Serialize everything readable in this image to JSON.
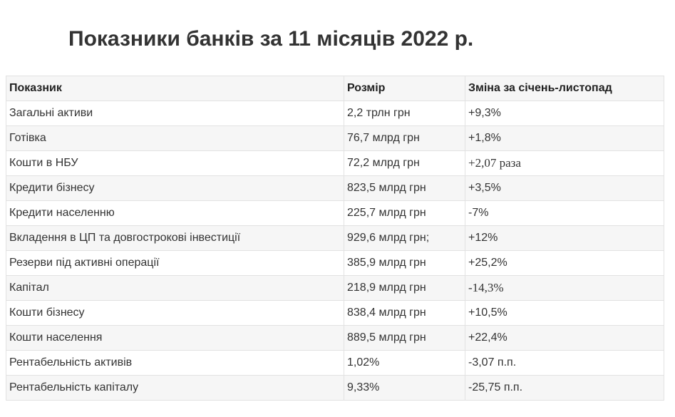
{
  "title": "Показники банків за 11 місяців 2022 р.",
  "table": {
    "headers": [
      "Показник",
      "Розмір",
      "Зміна за січень-листопад"
    ],
    "rows": [
      {
        "indicator": "Загальні активи",
        "size": "2,2 трлн грн",
        "change": "+9,3%"
      },
      {
        "indicator": "Готівка",
        "size": "76,7 млрд грн",
        "change": "+1,8%"
      },
      {
        "indicator": "Кошти в НБУ",
        "size": "72,2 млрд грн",
        "change": "+2,07 раза"
      },
      {
        "indicator": "Кредити бізнесу",
        "size": "823,5 млрд грн",
        "change": "+3,5%"
      },
      {
        "indicator": "Кредити населенню",
        "size": "225,7 млрд грн",
        "change": "-7%"
      },
      {
        "indicator": "Вкладення в ЦП та довгострокові інвестиції",
        "size": "929,6 млрд грн;",
        "change": "+12%"
      },
      {
        "indicator": "Резерви під активні операції",
        "size": "385,9 млрд грн",
        "change": "+25,2%"
      },
      {
        "indicator": "Капітал",
        "size": "218,9 млрд грн",
        "change": "-14,3%"
      },
      {
        "indicator": "Кошти бізнесу",
        "size": "838,4 млрд грн",
        "change": "+10,5%"
      },
      {
        "indicator": "Кошти населення",
        "size": "889,5 млрд грн",
        "change": "+22,4%"
      },
      {
        "indicator": "Рентабельність активів",
        "size": "1,02%",
        "change": "-3,07 п.п."
      },
      {
        "indicator": "Рентабельність капіталу",
        "size": "9,33%",
        "change": "-25,75 п.п."
      }
    ]
  }
}
